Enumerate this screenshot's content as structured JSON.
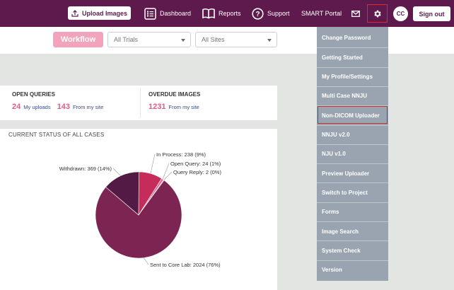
{
  "topnav": {
    "upload_label": "Upload Images",
    "dashboard_label": "Dashboard",
    "reports_label": "Reports",
    "support_label": "Support",
    "smart_portal_label": "SMART Portal",
    "avatar_initials": "CC",
    "signout_label": "Sign out",
    "colors": {
      "bar": "#5e1a4c",
      "highlight_border": "#e02a2a"
    }
  },
  "filterbar": {
    "workflow_label": "Workflow",
    "trials_selected": "All Trials",
    "sites_selected": "All Sites"
  },
  "queries_card": {
    "open_title": "OPEN QUERIES",
    "open_my_count": "24",
    "open_my_label": "My uploads",
    "open_site_count": "143",
    "open_site_label": "From my site",
    "overdue_title": "OVERDUE IMAGES",
    "overdue_count": "1231",
    "overdue_label": "From my site"
  },
  "chart_data": {
    "type": "pie",
    "title": "CURRENT STATUS OF ALL CASES",
    "slices": [
      {
        "label": "Sent to Core Lab: 2024 (76%)",
        "value": 2024,
        "color": "#7c2452"
      },
      {
        "label": "Withdrawn: 369 (14%)",
        "value": 369,
        "color": "#531a45"
      },
      {
        "label": "In Process: 238 (9%)",
        "value": 238,
        "color": "#c52b5b"
      },
      {
        "label": "Open Query: 24 (1%)",
        "value": 24,
        "color": "#ee6a93"
      },
      {
        "label": "Query Reply: 2 (0%)",
        "value": 2,
        "color": "#f5a9c0"
      }
    ]
  },
  "dropdown": {
    "items": [
      "Change Password",
      "Getting Started",
      "My Profile/Settings",
      "Multi Case NNJU",
      "Non-DICOM Uploader",
      "NNJU v2.0",
      "NJU v1.0",
      "Preview Uploader",
      "Switch to Project",
      "Forms",
      "Image Search",
      "System Check",
      "Version"
    ],
    "highlighted_index": 4
  }
}
